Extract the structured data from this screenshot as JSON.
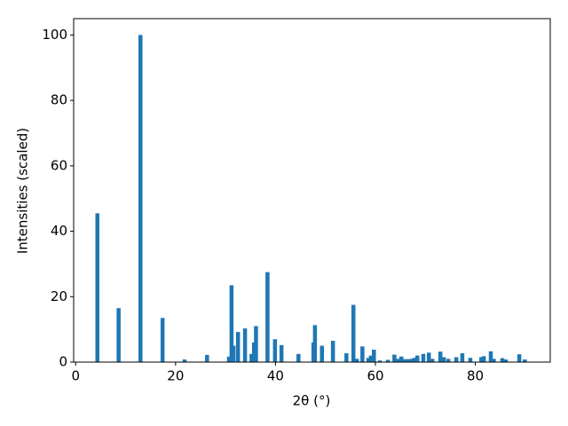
{
  "chart_data": {
    "type": "bar",
    "xlabel": "2θ (°)",
    "ylabel": "Intensities (scaled)",
    "color": "#1f77b4",
    "x": [
      4.35,
      8.6,
      12.97,
      17.4,
      21.8,
      26.3,
      30.7,
      31.2,
      31.6,
      32.5,
      33.9,
      35.2,
      35.7,
      36.1,
      38.4,
      39.9,
      41.2,
      44.6,
      47.6,
      47.9,
      49.3,
      51.5,
      54.2,
      55.6,
      56.3,
      57.4,
      58.6,
      59.1,
      59.7,
      60.9,
      62.5,
      63.8,
      64.5,
      65.2,
      65.9,
      66.6,
      67.3,
      67.8,
      68.4,
      69.6,
      70.7,
      71.4,
      73.0,
      73.7,
      74.6,
      76.2,
      77.4,
      79.0,
      81.2,
      81.7,
      83.1,
      83.7,
      85.4,
      86.1,
      88.8,
      89.9
    ],
    "values": [
      45.5,
      16.5,
      100,
      13.5,
      0.8,
      2.2,
      1.7,
      23.5,
      5,
      9.2,
      10.3,
      2.5,
      6,
      11,
      27.5,
      7,
      5.2,
      2.5,
      6,
      11.3,
      5,
      6.5,
      2.7,
      17.5,
      1,
      4.8,
      1.3,
      2,
      3.8,
      0.5,
      0.7,
      2.3,
      1,
      1.7,
      0.9,
      0.9,
      1,
      1.3,
      2,
      2.5,
      2.9,
      1,
      3.2,
      1.5,
      1,
      1.5,
      2.7,
      1.3,
      1.5,
      1.8,
      3.3,
      1,
      1.2,
      0.8,
      2.4,
      0.8
    ],
    "xlim": [
      -0.4,
      95.0
    ],
    "xticks": [
      0,
      20,
      40,
      60,
      80
    ],
    "ylim": [
      0,
      105
    ],
    "yticks": [
      0,
      20,
      40,
      60,
      80,
      100
    ]
  }
}
